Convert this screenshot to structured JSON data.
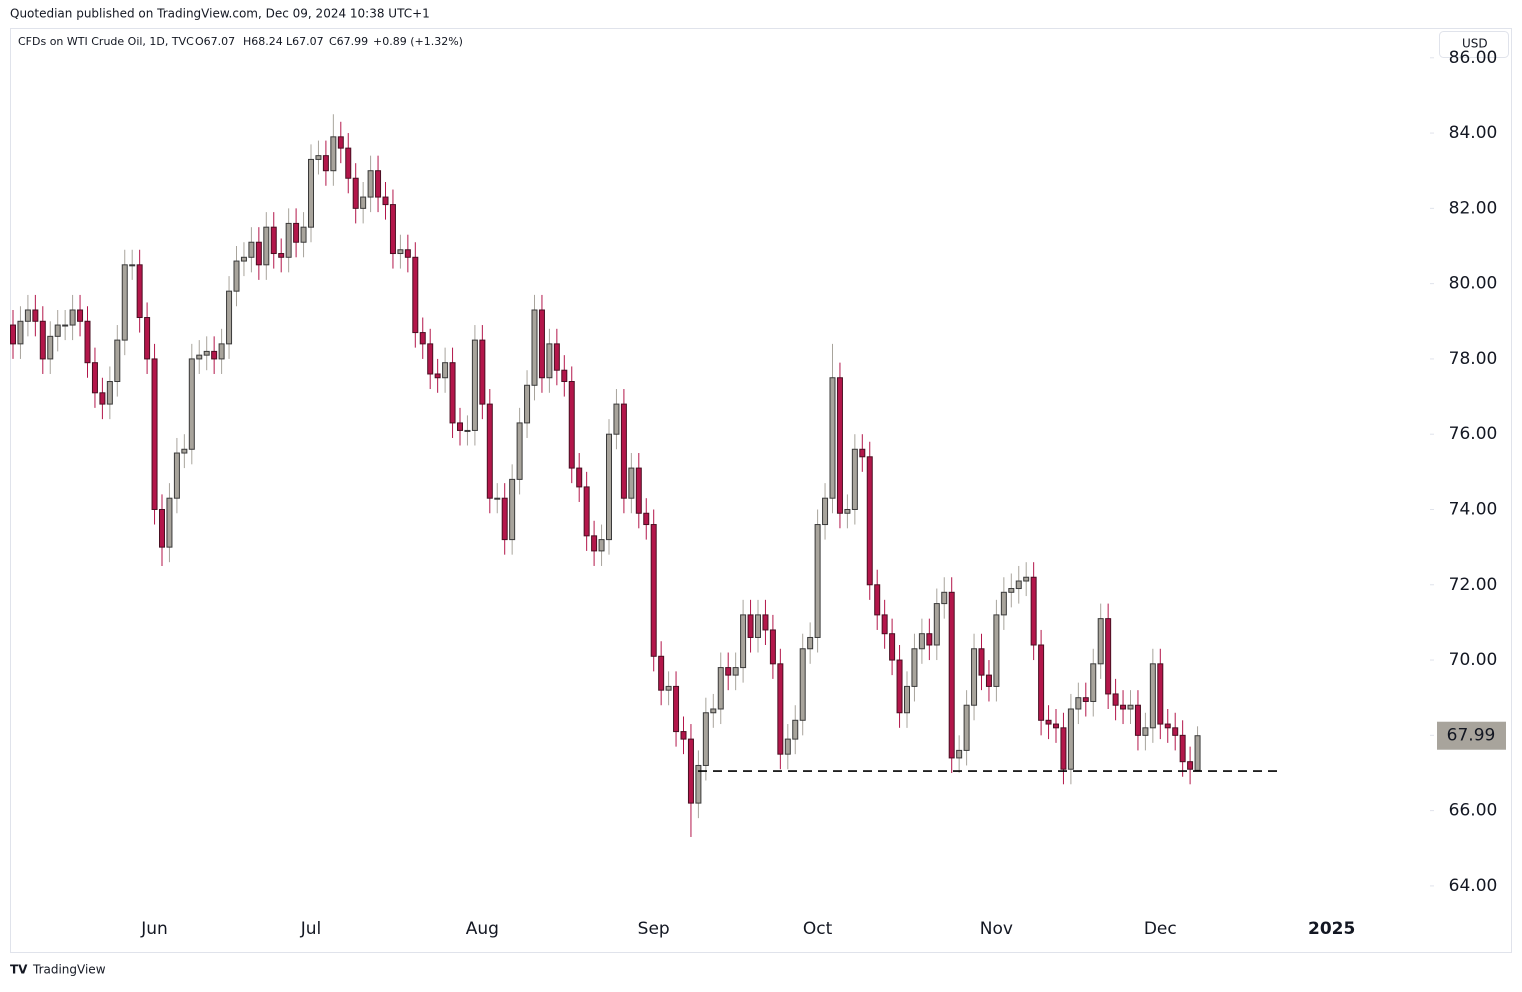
{
  "header": {
    "published": "Quotedian published on TradingView.com, Dec 09, 2024 10:38 UTC+1",
    "symbol": "CFDs on WTI Crude Oil, 1D, TVC",
    "open": "O67.07",
    "high": "H68.24",
    "low": "L67.07",
    "close": "C67.99",
    "change": "+0.89 (+1.32%)",
    "currency": "USD"
  },
  "footer": {
    "brand": "TradingView"
  },
  "chart_data": {
    "type": "candlestick",
    "categories": [
      null,
      null,
      null,
      null,
      null,
      null,
      null,
      null,
      null,
      null,
      null,
      null,
      null,
      null,
      null,
      null,
      null,
      null,
      null,
      "Jun",
      null,
      null,
      null,
      null,
      null,
      null,
      null,
      null,
      null,
      null,
      null,
      null,
      null,
      null,
      null,
      null,
      null,
      null,
      null,
      null,
      "Jul",
      null,
      null,
      null,
      null,
      null,
      null,
      null,
      null,
      null,
      null,
      null,
      null,
      null,
      null,
      null,
      null,
      null,
      null,
      null,
      null,
      null,
      null,
      "Aug",
      null,
      null,
      null,
      null,
      null,
      null,
      null,
      null,
      null,
      null,
      null,
      null,
      null,
      null,
      null,
      null,
      null,
      null,
      null,
      null,
      null,
      null,
      "Sep",
      null,
      null,
      null,
      null,
      null,
      null,
      null,
      null,
      null,
      null,
      null,
      null,
      null,
      null,
      null,
      null,
      null,
      null,
      null,
      null,
      null,
      "Oct",
      null,
      null,
      null,
      null,
      null,
      null,
      null,
      null,
      null,
      null,
      null,
      null,
      null,
      null,
      null,
      null,
      null,
      null,
      null,
      null,
      null,
      null,
      null,
      "Nov",
      null,
      null,
      null,
      null,
      null,
      null,
      null,
      null,
      null,
      null,
      null,
      null,
      null,
      null,
      null,
      null,
      null,
      null,
      null,
      null,
      null,
      "Dec",
      null,
      null,
      null,
      null,
      null,
      null,
      null,
      null,
      null,
      null,
      null,
      null,
      null,
      null,
      null,
      null,
      null,
      null,
      null,
      null,
      null,
      null,
      "2025"
    ],
    "open": [
      78.9,
      78.4,
      79.0,
      79.3,
      79.0,
      78.0,
      78.6,
      78.9,
      78.9,
      79.3,
      79.0,
      77.9,
      77.1,
      76.8,
      77.4,
      78.5,
      80.5,
      80.5,
      79.1,
      78.0,
      74.0,
      73.0,
      74.3,
      75.5,
      75.6,
      78.0,
      78.1,
      78.2,
      78.0,
      78.4,
      79.8,
      80.6,
      80.7,
      81.1,
      80.5,
      81.5,
      80.8,
      80.7,
      81.6,
      81.1,
      81.5,
      83.3,
      83.4,
      83.0,
      83.9,
      83.6,
      82.8,
      82.0,
      82.3,
      83.0,
      82.3,
      82.1,
      80.8,
      80.9,
      80.7,
      78.7,
      78.4,
      77.6,
      77.5,
      77.9,
      76.3,
      76.1,
      76.1,
      78.5,
      76.8,
      74.3,
      74.3,
      73.2,
      74.8,
      76.3,
      77.3,
      79.3,
      77.5,
      78.4,
      77.7,
      77.4,
      75.1,
      74.6,
      73.3,
      72.9,
      73.2,
      76.0,
      76.8,
      74.3,
      75.1,
      73.9,
      73.6,
      70.1,
      69.2,
      69.3,
      68.1,
      67.9,
      66.2,
      67.2,
      68.6,
      68.7,
      69.8,
      69.6,
      69.8,
      71.2,
      70.6,
      71.2,
      70.8,
      69.9,
      67.5,
      67.9,
      68.4,
      70.3,
      70.6,
      73.6,
      74.3,
      77.5,
      73.9,
      74.0,
      75.6,
      75.4,
      72.0,
      71.2,
      70.7,
      70.0,
      68.6,
      69.3,
      70.3,
      70.7,
      70.4,
      71.5,
      71.8,
      67.4,
      67.6,
      68.8,
      70.3,
      69.6,
      69.3,
      71.2,
      71.8,
      71.9,
      72.1,
      72.2,
      70.4,
      68.4,
      68.3,
      68.2,
      67.1,
      68.7,
      69.0,
      68.9,
      69.9,
      71.1,
      69.1,
      68.8,
      68.7,
      68.8,
      68.0,
      68.2,
      69.9,
      68.3,
      68.2,
      68.0,
      67.3,
      67.07,
      null,
      null,
      null,
      null,
      null,
      null,
      null,
      null,
      null,
      null,
      null,
      null,
      null,
      null,
      null,
      null,
      null,
      null
    ],
    "high": [
      79.3,
      79.4,
      79.7,
      79.7,
      79.4,
      79.0,
      79.3,
      79.3,
      79.7,
      79.7,
      79.4,
      78.3,
      77.5,
      77.8,
      78.9,
      80.9,
      80.9,
      80.9,
      79.5,
      78.4,
      74.4,
      74.7,
      75.9,
      76.0,
      78.4,
      78.5,
      78.6,
      78.6,
      78.8,
      80.2,
      81.0,
      81.1,
      81.5,
      81.5,
      81.9,
      81.9,
      81.2,
      82.0,
      82.0,
      81.9,
      83.7,
      83.8,
      83.8,
      84.5,
      84.3,
      84.0,
      83.2,
      82.7,
      83.4,
      83.4,
      82.7,
      82.5,
      81.3,
      81.3,
      81.1,
      79.1,
      78.8,
      78.0,
      78.3,
      78.3,
      76.7,
      76.5,
      78.9,
      78.9,
      77.2,
      74.7,
      74.7,
      75.2,
      76.7,
      77.7,
      79.7,
      79.7,
      78.8,
      78.8,
      78.1,
      77.8,
      75.5,
      75.0,
      73.7,
      73.6,
      76.4,
      77.2,
      77.2,
      75.5,
      75.5,
      74.3,
      74.0,
      70.5,
      69.7,
      69.7,
      68.5,
      68.3,
      67.6,
      69.0,
      69.1,
      70.2,
      70.2,
      70.2,
      71.6,
      71.6,
      71.6,
      71.6,
      71.2,
      70.3,
      68.3,
      68.8,
      70.7,
      71.0,
      74.0,
      74.7,
      78.4,
      77.9,
      74.4,
      76.0,
      76.0,
      75.8,
      72.4,
      71.6,
      71.1,
      70.4,
      69.7,
      70.7,
      71.1,
      71.1,
      71.9,
      72.2,
      72.2,
      68.0,
      69.2,
      70.7,
      70.7,
      70.0,
      71.6,
      72.2,
      72.3,
      72.5,
      72.6,
      72.6,
      70.8,
      68.8,
      68.7,
      68.6,
      69.1,
      69.4,
      69.4,
      70.3,
      71.5,
      71.5,
      69.5,
      69.2,
      69.2,
      69.2,
      68.6,
      70.3,
      70.3,
      68.7,
      68.6,
      68.4,
      67.7,
      68.24,
      null,
      null,
      null,
      null,
      null,
      null,
      null,
      null,
      null,
      null,
      null,
      null,
      null,
      null,
      null,
      null,
      null,
      null
    ],
    "low": [
      78.0,
      78.0,
      78.6,
      78.6,
      77.6,
      77.6,
      78.2,
      78.5,
      78.5,
      78.6,
      77.5,
      76.7,
      76.4,
      76.4,
      77.0,
      78.1,
      80.1,
      78.7,
      77.6,
      73.6,
      72.5,
      72.6,
      73.9,
      75.1,
      75.2,
      77.6,
      77.7,
      77.6,
      77.6,
      78.0,
      79.4,
      80.2,
      80.3,
      80.1,
      80.1,
      80.4,
      80.3,
      80.3,
      80.7,
      80.7,
      81.1,
      82.9,
      82.6,
      82.6,
      83.2,
      82.4,
      81.6,
      81.6,
      81.9,
      81.9,
      81.7,
      80.4,
      80.4,
      80.3,
      78.3,
      78.0,
      77.2,
      77.1,
      77.1,
      75.9,
      75.7,
      75.7,
      75.7,
      76.4,
      73.9,
      73.9,
      72.8,
      72.8,
      74.4,
      75.9,
      76.9,
      77.1,
      77.1,
      77.3,
      77.0,
      74.7,
      74.2,
      72.9,
      72.5,
      72.5,
      72.8,
      75.6,
      73.9,
      73.9,
      73.5,
      73.2,
      69.7,
      68.8,
      68.8,
      67.7,
      67.5,
      65.3,
      65.8,
      66.8,
      68.2,
      68.3,
      69.2,
      69.2,
      69.4,
      70.2,
      70.2,
      70.4,
      69.5,
      67.1,
      67.1,
      67.5,
      68.0,
      69.9,
      70.2,
      73.2,
      73.9,
      73.5,
      73.5,
      73.6,
      75.0,
      71.6,
      70.8,
      70.3,
      69.6,
      68.2,
      68.2,
      68.9,
      69.9,
      70.0,
      70.0,
      71.1,
      67.0,
      67.0,
      67.2,
      68.4,
      69.2,
      68.9,
      68.9,
      70.8,
      71.4,
      71.5,
      71.7,
      70.0,
      68.0,
      67.9,
      67.8,
      66.7,
      66.7,
      68.3,
      68.5,
      68.5,
      69.5,
      68.7,
      68.4,
      68.3,
      68.3,
      67.6,
      67.6,
      67.8,
      67.9,
      67.8,
      67.6,
      66.9,
      66.7,
      67.07,
      null,
      null,
      null,
      null,
      null,
      null,
      null,
      null,
      null,
      null,
      null,
      null,
      null,
      null,
      null,
      null,
      null,
      null
    ],
    "close": [
      78.4,
      79.0,
      79.3,
      79.0,
      78.0,
      78.6,
      78.9,
      78.9,
      79.3,
      79.0,
      77.9,
      77.1,
      76.8,
      77.4,
      78.5,
      80.5,
      80.5,
      79.1,
      78.0,
      74.0,
      73.0,
      74.3,
      75.5,
      75.6,
      78.0,
      78.1,
      78.2,
      78.0,
      78.4,
      79.8,
      80.6,
      80.7,
      81.1,
      80.5,
      81.5,
      80.8,
      80.7,
      81.6,
      81.1,
      81.5,
      83.3,
      83.4,
      83.0,
      83.9,
      83.6,
      82.8,
      82.0,
      82.3,
      83.0,
      82.3,
      82.1,
      80.8,
      80.9,
      80.7,
      78.7,
      78.4,
      77.6,
      77.5,
      77.9,
      76.3,
      76.1,
      76.1,
      78.5,
      76.8,
      74.3,
      74.3,
      73.2,
      74.8,
      76.3,
      77.3,
      79.3,
      77.5,
      78.4,
      77.7,
      77.4,
      75.1,
      74.6,
      73.3,
      72.9,
      73.2,
      76.0,
      76.8,
      74.3,
      75.1,
      73.9,
      73.6,
      70.1,
      69.2,
      69.3,
      68.1,
      67.9,
      66.2,
      67.2,
      68.6,
      68.7,
      69.8,
      69.6,
      69.8,
      71.2,
      70.6,
      71.2,
      70.8,
      69.9,
      67.5,
      67.9,
      68.4,
      70.3,
      70.6,
      73.6,
      74.3,
      77.5,
      73.9,
      74.0,
      75.6,
      75.4,
      72.0,
      71.2,
      70.7,
      70.0,
      68.6,
      69.3,
      70.3,
      70.7,
      70.4,
      71.5,
      71.8,
      67.4,
      67.6,
      68.8,
      70.3,
      69.6,
      69.3,
      71.2,
      71.8,
      71.9,
      72.1,
      72.2,
      70.4,
      68.4,
      68.3,
      68.2,
      67.1,
      68.7,
      69.0,
      68.9,
      69.9,
      71.1,
      69.1,
      68.8,
      68.7,
      68.8,
      68.0,
      68.2,
      69.9,
      68.3,
      68.2,
      68.0,
      67.3,
      67.1,
      67.99,
      null,
      null,
      null,
      null,
      null,
      null,
      null,
      null,
      null,
      null,
      null,
      null,
      null,
      null,
      null,
      null,
      null,
      null
    ],
    "up_color": "#a8a49c",
    "down_color": "#b3164a",
    "last_price": 67.99,
    "support_level": 67.05,
    "ylim": [
      63.36,
      86.26
    ],
    "yticks": [
      {
        "value": 64,
        "label": "64.00"
      },
      {
        "value": 66,
        "label": "66.00"
      },
      {
        "value": 68,
        "label": "68.00"
      },
      {
        "value": 70,
        "label": "70.00"
      },
      {
        "value": 72,
        "label": "72.00"
      },
      {
        "value": 74,
        "label": "74.00"
      },
      {
        "value": 76,
        "label": "76.00"
      },
      {
        "value": 78,
        "label": "78.00"
      },
      {
        "value": 80,
        "label": "80.00"
      },
      {
        "value": 82,
        "label": "82.00"
      },
      {
        "value": 84,
        "label": "84.00"
      },
      {
        "value": 86,
        "label": "86.00"
      }
    ],
    "grid": false
  }
}
